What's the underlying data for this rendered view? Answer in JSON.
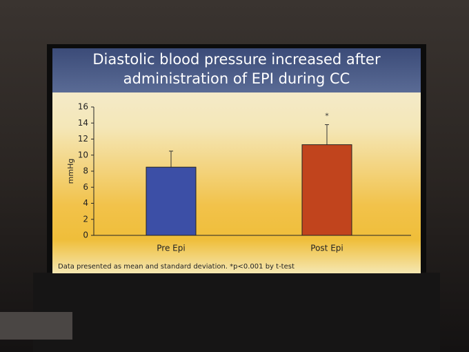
{
  "chart_data": {
    "type": "bar",
    "title": "Diastolic blood pressure increased after administration of EPI during CC",
    "ylabel": "mmHg",
    "categories": [
      "Pre Epi",
      "Post Epi"
    ],
    "values": [
      8.5,
      11.3
    ],
    "errors": [
      2,
      2.5
    ],
    "colors": [
      "#3c4fa6",
      "#c1441d"
    ],
    "annotation": "*",
    "note": "Data presented as mean and standard deviation. *p<0.001 by t-test",
    "ylim": [
      0,
      16
    ],
    "yticks": [
      0,
      2,
      4,
      6,
      8,
      10,
      12,
      14,
      16
    ]
  }
}
